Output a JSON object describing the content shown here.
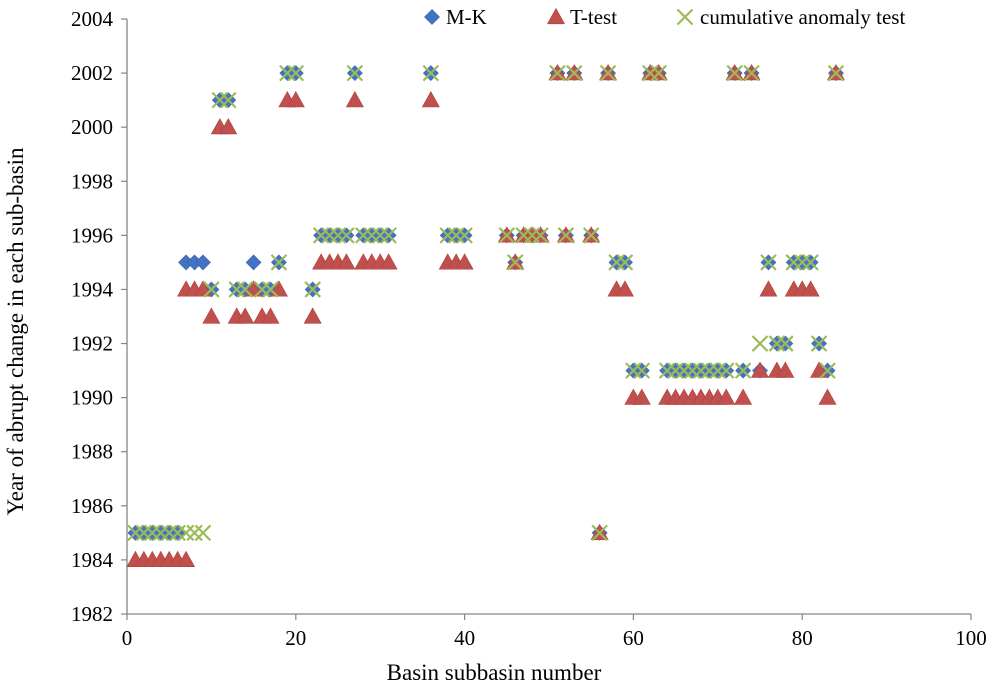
{
  "chart_data": {
    "type": "scatter",
    "title": "",
    "xlabel": "Basin subbasin number",
    "ylabel": "Year of abrupt change in each sub-basin",
    "xlim": [
      0,
      100
    ],
    "ylim": [
      1982,
      2004
    ],
    "xticks": [
      0,
      20,
      40,
      60,
      80,
      100
    ],
    "yticks": [
      1982,
      1984,
      1986,
      1988,
      1990,
      1992,
      1994,
      1996,
      1998,
      2000,
      2002,
      2004
    ],
    "grid": false,
    "legend_position": "top",
    "series": [
      {
        "name": "M-K",
        "marker": "diamond",
        "color": "#4472C4",
        "points": [
          [
            1,
            1985
          ],
          [
            2,
            1985
          ],
          [
            3,
            1985
          ],
          [
            4,
            1985
          ],
          [
            5,
            1985
          ],
          [
            6,
            1985
          ],
          [
            7,
            1995
          ],
          [
            8,
            1995
          ],
          [
            9,
            1995
          ],
          [
            10,
            1994
          ],
          [
            11,
            2001
          ],
          [
            12,
            2001
          ],
          [
            13,
            1994
          ],
          [
            14,
            1994
          ],
          [
            15,
            1995
          ],
          [
            16,
            1994
          ],
          [
            17,
            1994
          ],
          [
            18,
            1995
          ],
          [
            19,
            2002
          ],
          [
            20,
            2002
          ],
          [
            22,
            1994
          ],
          [
            23,
            1996
          ],
          [
            24,
            1996
          ],
          [
            25,
            1996
          ],
          [
            26,
            1996
          ],
          [
            27,
            2002
          ],
          [
            28,
            1996
          ],
          [
            29,
            1996
          ],
          [
            30,
            1996
          ],
          [
            31,
            1996
          ],
          [
            36,
            2002
          ],
          [
            38,
            1996
          ],
          [
            39,
            1996
          ],
          [
            40,
            1996
          ],
          [
            45,
            1996
          ],
          [
            46,
            1995
          ],
          [
            47,
            1996
          ],
          [
            48,
            1996
          ],
          [
            49,
            1996
          ],
          [
            51,
            2002
          ],
          [
            52,
            1996
          ],
          [
            53,
            2002
          ],
          [
            55,
            1996
          ],
          [
            56,
            1985
          ],
          [
            57,
            2002
          ],
          [
            58,
            1995
          ],
          [
            59,
            1995
          ],
          [
            60,
            1991
          ],
          [
            61,
            1991
          ],
          [
            62,
            2002
          ],
          [
            63,
            2002
          ],
          [
            64,
            1991
          ],
          [
            65,
            1991
          ],
          [
            66,
            1991
          ],
          [
            67,
            1991
          ],
          [
            68,
            1991
          ],
          [
            69,
            1991
          ],
          [
            70,
            1991
          ],
          [
            71,
            1991
          ],
          [
            72,
            2002
          ],
          [
            73,
            1991
          ],
          [
            74,
            2002
          ],
          [
            75,
            1991
          ],
          [
            76,
            1995
          ],
          [
            77,
            1992
          ],
          [
            78,
            1992
          ],
          [
            79,
            1995
          ],
          [
            80,
            1995
          ],
          [
            81,
            1995
          ],
          [
            82,
            1992
          ],
          [
            83,
            1991
          ],
          [
            84,
            2002
          ]
        ]
      },
      {
        "name": "T-test",
        "marker": "triangle",
        "color": "#C0504D",
        "points": [
          [
            1,
            1984
          ],
          [
            2,
            1984
          ],
          [
            3,
            1984
          ],
          [
            4,
            1984
          ],
          [
            5,
            1984
          ],
          [
            6,
            1984
          ],
          [
            7,
            1984
          ],
          [
            7,
            1994
          ],
          [
            8,
            1994
          ],
          [
            9,
            1994
          ],
          [
            10,
            1993
          ],
          [
            11,
            2000
          ],
          [
            12,
            2000
          ],
          [
            13,
            1993
          ],
          [
            14,
            1993
          ],
          [
            15,
            1994
          ],
          [
            16,
            1993
          ],
          [
            17,
            1993
          ],
          [
            18,
            1994
          ],
          [
            19,
            2001
          ],
          [
            20,
            2001
          ],
          [
            22,
            1993
          ],
          [
            23,
            1995
          ],
          [
            24,
            1995
          ],
          [
            25,
            1995
          ],
          [
            26,
            1995
          ],
          [
            27,
            2001
          ],
          [
            28,
            1995
          ],
          [
            29,
            1995
          ],
          [
            30,
            1995
          ],
          [
            31,
            1995
          ],
          [
            36,
            2001
          ],
          [
            38,
            1995
          ],
          [
            39,
            1995
          ],
          [
            40,
            1995
          ],
          [
            45,
            1996
          ],
          [
            46,
            1995
          ],
          [
            47,
            1996
          ],
          [
            48,
            1996
          ],
          [
            49,
            1996
          ],
          [
            51,
            2002
          ],
          [
            52,
            1996
          ],
          [
            53,
            2002
          ],
          [
            55,
            1996
          ],
          [
            56,
            1985
          ],
          [
            57,
            2002
          ],
          [
            58,
            1994
          ],
          [
            59,
            1994
          ],
          [
            60,
            1990
          ],
          [
            61,
            1990
          ],
          [
            62,
            2002
          ],
          [
            63,
            2002
          ],
          [
            64,
            1990
          ],
          [
            65,
            1990
          ],
          [
            66,
            1990
          ],
          [
            67,
            1990
          ],
          [
            68,
            1990
          ],
          [
            69,
            1990
          ],
          [
            70,
            1990
          ],
          [
            71,
            1990
          ],
          [
            72,
            2002
          ],
          [
            73,
            1990
          ],
          [
            74,
            2002
          ],
          [
            75,
            1991
          ],
          [
            76,
            1994
          ],
          [
            77,
            1991
          ],
          [
            78,
            1991
          ],
          [
            79,
            1994
          ],
          [
            80,
            1994
          ],
          [
            81,
            1994
          ],
          [
            82,
            1991
          ],
          [
            83,
            1990
          ],
          [
            84,
            2002
          ]
        ]
      },
      {
        "name": "cumulative anomaly test",
        "marker": "x",
        "color": "#9BBB59",
        "points": [
          [
            1,
            1985
          ],
          [
            2,
            1985
          ],
          [
            3,
            1985
          ],
          [
            4,
            1985
          ],
          [
            5,
            1985
          ],
          [
            6,
            1985
          ],
          [
            7,
            1985
          ],
          [
            8,
            1985
          ],
          [
            9,
            1985
          ],
          [
            10,
            1994
          ],
          [
            11,
            2001
          ],
          [
            12,
            2001
          ],
          [
            13,
            1994
          ],
          [
            14,
            1994
          ],
          [
            16,
            1994
          ],
          [
            17,
            1994
          ],
          [
            18,
            1995
          ],
          [
            19,
            2002
          ],
          [
            20,
            2002
          ],
          [
            22,
            1994
          ],
          [
            23,
            1996
          ],
          [
            24,
            1996
          ],
          [
            25,
            1996
          ],
          [
            26,
            1996
          ],
          [
            27,
            2002
          ],
          [
            28,
            1996
          ],
          [
            29,
            1996
          ],
          [
            30,
            1996
          ],
          [
            31,
            1996
          ],
          [
            36,
            2002
          ],
          [
            38,
            1996
          ],
          [
            39,
            1996
          ],
          [
            40,
            1996
          ],
          [
            45,
            1996
          ],
          [
            46,
            1995
          ],
          [
            47,
            1996
          ],
          [
            48,
            1996
          ],
          [
            49,
            1996
          ],
          [
            51,
            2002
          ],
          [
            52,
            1996
          ],
          [
            53,
            2002
          ],
          [
            55,
            1996
          ],
          [
            56,
            1985
          ],
          [
            57,
            2002
          ],
          [
            58,
            1995
          ],
          [
            59,
            1995
          ],
          [
            60,
            1991
          ],
          [
            61,
            1991
          ],
          [
            62,
            2002
          ],
          [
            63,
            2002
          ],
          [
            64,
            1991
          ],
          [
            65,
            1991
          ],
          [
            66,
            1991
          ],
          [
            67,
            1991
          ],
          [
            68,
            1991
          ],
          [
            69,
            1991
          ],
          [
            70,
            1991
          ],
          [
            71,
            1991
          ],
          [
            72,
            2002
          ],
          [
            73,
            1991
          ],
          [
            74,
            2002
          ],
          [
            75,
            1992
          ],
          [
            76,
            1995
          ],
          [
            77,
            1992
          ],
          [
            78,
            1992
          ],
          [
            79,
            1995
          ],
          [
            80,
            1995
          ],
          [
            81,
            1995
          ],
          [
            82,
            1992
          ],
          [
            83,
            1991
          ],
          [
            84,
            2002
          ]
        ]
      }
    ]
  }
}
